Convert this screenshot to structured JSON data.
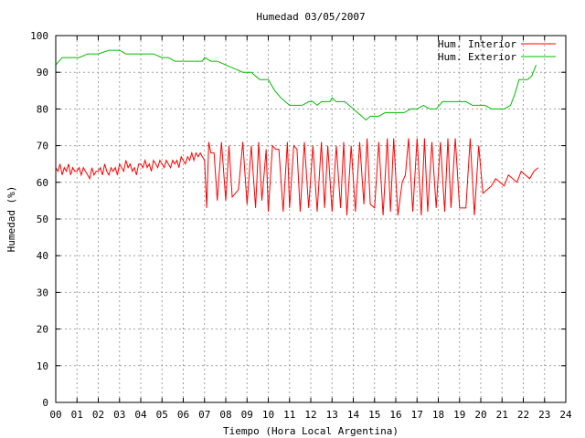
{
  "chart_data": {
    "type": "line",
    "title": "Humedad 03/05/2007",
    "xlabel": "Tiempo (Hora Local Argentina)",
    "ylabel": "Humedad (%)",
    "xlim": [
      0,
      24
    ],
    "ylim": [
      0,
      100
    ],
    "x_ticks": [
      "00",
      "01",
      "02",
      "03",
      "04",
      "05",
      "06",
      "07",
      "08",
      "09",
      "10",
      "11",
      "12",
      "13",
      "14",
      "15",
      "16",
      "17",
      "18",
      "19",
      "20",
      "21",
      "22",
      "23",
      "24"
    ],
    "y_ticks": [
      "0",
      "10",
      "20",
      "30",
      "40",
      "50",
      "60",
      "70",
      "80",
      "90",
      "100"
    ],
    "grid": true,
    "legend_position": "top-right",
    "series": [
      {
        "name": "Hum. Interior",
        "color": "#ff0000",
        "x": [
          0.0,
          0.1,
          0.2,
          0.3,
          0.4,
          0.5,
          0.6,
          0.7,
          0.8,
          0.9,
          1.0,
          1.1,
          1.2,
          1.3,
          1.4,
          1.5,
          1.6,
          1.7,
          1.8,
          1.9,
          2.0,
          2.1,
          2.2,
          2.3,
          2.4,
          2.5,
          2.6,
          2.7,
          2.8,
          2.9,
          3.0,
          3.1,
          3.2,
          3.3,
          3.4,
          3.5,
          3.6,
          3.7,
          3.8,
          3.9,
          4.0,
          4.1,
          4.2,
          4.3,
          4.4,
          4.5,
          4.6,
          4.7,
          4.8,
          4.9,
          5.0,
          5.1,
          5.2,
          5.3,
          5.4,
          5.5,
          5.6,
          5.7,
          5.8,
          5.9,
          6.0,
          6.1,
          6.2,
          6.3,
          6.4,
          6.5,
          6.6,
          6.7,
          6.8,
          6.9,
          7.0,
          7.1,
          7.2,
          7.3,
          7.45,
          7.6,
          7.8,
          8.0,
          8.15,
          8.3,
          8.45,
          8.6,
          8.8,
          9.0,
          9.2,
          9.4,
          9.55,
          9.7,
          9.9,
          10.0,
          10.2,
          10.35,
          10.5,
          10.7,
          10.9,
          11.0,
          11.2,
          11.35,
          11.5,
          11.7,
          11.9,
          12.1,
          12.3,
          12.5,
          12.65,
          12.8,
          13.0,
          13.2,
          13.4,
          13.55,
          13.7,
          13.9,
          14.1,
          14.3,
          14.5,
          14.65,
          14.8,
          15.0,
          15.2,
          15.4,
          15.6,
          15.75,
          15.9,
          16.1,
          16.3,
          16.45,
          16.6,
          16.8,
          17.0,
          17.2,
          17.35,
          17.5,
          17.7,
          17.9,
          18.1,
          18.3,
          18.45,
          18.6,
          18.8,
          19.0,
          19.15,
          19.3,
          19.5,
          19.7,
          19.9,
          20.1,
          20.3,
          20.5,
          20.7,
          20.9,
          21.1,
          21.3,
          21.5,
          21.7,
          21.9,
          22.1,
          22.3,
          22.5,
          22.7
        ],
        "y": [
          64,
          63,
          65,
          62,
          64,
          63,
          65,
          62,
          64,
          63,
          63,
          64,
          62,
          64,
          63,
          62,
          61,
          64,
          62,
          63,
          63,
          64,
          62,
          65,
          63,
          62,
          64,
          63,
          64,
          62,
          65,
          64,
          63,
          66,
          64,
          65,
          63,
          64,
          62,
          65,
          65,
          64,
          66,
          64,
          65,
          63,
          66,
          65,
          64,
          66,
          65,
          64,
          66,
          65,
          64,
          66,
          65,
          66,
          64,
          67,
          66,
          65,
          67,
          66,
          68,
          66,
          68,
          67,
          68,
          67,
          66,
          53,
          71,
          68,
          68,
          55,
          71,
          55,
          70,
          56,
          57,
          58,
          71,
          54,
          70,
          53,
          71,
          55,
          69,
          52,
          70,
          69,
          69,
          52,
          71,
          53,
          70,
          69,
          52,
          71,
          53,
          70,
          52,
          71,
          53,
          70,
          52,
          70,
          53,
          71,
          51,
          70,
          52,
          71,
          54,
          72,
          54,
          53,
          71,
          51,
          72,
          52,
          72,
          51,
          60,
          62,
          72,
          52,
          72,
          51,
          72,
          52,
          71,
          53,
          71,
          52,
          72,
          53,
          72,
          53,
          53,
          53,
          72,
          51,
          70,
          57,
          58,
          59,
          61,
          60,
          59,
          62,
          61,
          60,
          63,
          62,
          61,
          63,
          64
        ]
      },
      {
        "name": "Hum. Exterior",
        "color": "#00bb00",
        "x": [
          0.0,
          0.15,
          0.3,
          0.5,
          0.8,
          1.1,
          1.5,
          2.0,
          2.5,
          2.7,
          3.0,
          3.3,
          3.6,
          3.9,
          4.2,
          4.6,
          5.0,
          5.3,
          5.6,
          6.0,
          6.5,
          6.9,
          7.0,
          7.3,
          7.6,
          8.0,
          8.4,
          8.8,
          9.2,
          9.6,
          10.0,
          10.3,
          10.6,
          11.0,
          11.3,
          11.6,
          11.9,
          12.1,
          12.3,
          12.5,
          12.7,
          12.9,
          13.0,
          13.2,
          13.4,
          13.6,
          13.8,
          14.0,
          14.2,
          14.4,
          14.6,
          14.8,
          15.0,
          15.2,
          15.5,
          15.8,
          16.1,
          16.4,
          16.7,
          17.0,
          17.3,
          17.6,
          17.9,
          18.2,
          18.5,
          18.9,
          19.3,
          19.6,
          19.9,
          20.2,
          20.5,
          20.8,
          21.1,
          21.4,
          21.6,
          21.8,
          22.0,
          22.2,
          22.4,
          22.6
        ],
        "y": [
          92,
          93,
          94,
          94,
          94,
          94,
          95,
          95,
          96,
          96,
          96,
          95,
          95,
          95,
          95,
          95,
          94,
          94,
          93,
          93,
          93,
          93,
          94,
          93,
          93,
          92,
          91,
          90,
          90,
          88,
          88,
          85,
          83,
          81,
          81,
          81,
          82,
          82,
          81,
          82,
          82,
          82,
          83,
          82,
          82,
          82,
          81,
          80,
          79,
          78,
          77,
          78,
          78,
          78,
          79,
          79,
          79,
          79,
          80,
          80,
          81,
          80,
          80,
          82,
          82,
          82,
          82,
          81,
          81,
          81,
          80,
          80,
          80,
          81,
          84,
          88,
          88,
          88,
          89,
          92
        ]
      }
    ]
  }
}
